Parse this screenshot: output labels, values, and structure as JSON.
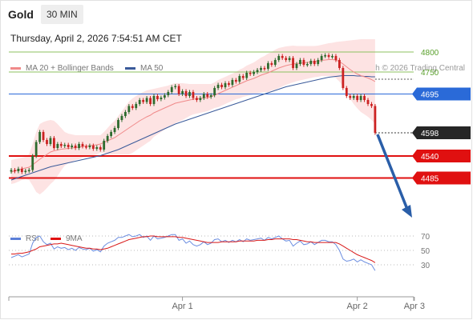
{
  "header": {
    "title": "Gold",
    "timeframe": "30 MIN",
    "datetime": "Thursday, April 2, 2026 7:54:51 AM CET"
  },
  "legend": {
    "ma20": "MA 20 + Bollinger Bands",
    "ma50": "MA 50",
    "credit": "Research © 2026 Trading Central",
    "rsi": "RSI",
    "ma9": "9MA"
  },
  "colors": {
    "up": "#2e6b2e",
    "down": "#cc2222",
    "ma20": "#f08a8a",
    "band": "#fde3e3",
    "ma50": "#3a5a9a",
    "resistance": "#8cc060",
    "pivot": "#2a6ad8",
    "support": "#e01010",
    "current": "#262626",
    "arrow": "#2a5ea8"
  },
  "chart_data": {
    "type": "candlestick",
    "price_axis": {
      "min": 4450,
      "max": 4840
    },
    "x_labels": [
      {
        "label": "Apr 1",
        "index": 48
      },
      {
        "label": "Apr 2",
        "index": 97
      },
      {
        "label": "Apr 3",
        "index": 113
      }
    ],
    "levels": [
      {
        "value": 4800,
        "label": "4800",
        "kind": "resistance"
      },
      {
        "value": 4750,
        "label": "4750",
        "kind": "resistance"
      },
      {
        "value": 4695,
        "label": "4695",
        "kind": "pivot"
      },
      {
        "value": 4598,
        "label": "4598",
        "kind": "current"
      },
      {
        "value": 4540,
        "label": "4540",
        "kind": "support"
      },
      {
        "value": 4485,
        "label": "4485",
        "kind": "support"
      }
    ],
    "closes": [
      4505,
      4502,
      4508,
      4500,
      4503,
      4505,
      4540,
      4575,
      4600,
      4580,
      4570,
      4585,
      4560,
      4570,
      4565,
      4568,
      4562,
      4566,
      4560,
      4570,
      4564,
      4562,
      4566,
      4558,
      4562,
      4556,
      4578,
      4590,
      4600,
      4610,
      4630,
      4640,
      4650,
      4665,
      4660,
      4670,
      4680,
      4675,
      4685,
      4670,
      4690,
      4682,
      4686,
      4692,
      4700,
      4712,
      4715,
      4695,
      4702,
      4690,
      4700,
      4685,
      4680,
      4685,
      4695,
      4688,
      4692,
      4710,
      4718,
      4712,
      4722,
      4718,
      4730,
      4726,
      4740,
      4735,
      4748,
      4745,
      4750,
      4755,
      4760,
      4758,
      4772,
      4768,
      4780,
      4790,
      4785,
      4780,
      4785,
      4760,
      4770,
      4780,
      4768,
      4770,
      4778,
      4770,
      4780,
      4790,
      4792,
      4788,
      4790,
      4780,
      4760,
      4710,
      4690,
      4685,
      4690,
      4680,
      4690,
      4680,
      4670,
      4665,
      4598
    ],
    "ma20": [
      4500,
      4502,
      4505,
      4508,
      4510,
      4512,
      4518,
      4525,
      4532,
      4538,
      4544,
      4550,
      4553,
      4555,
      4557,
      4558,
      4559,
      4560,
      4561,
      4562,
      4564,
      4565,
      4566,
      4567,
      4568,
      4570,
      4574,
      4578,
      4582,
      4586,
      4592,
      4598,
      4604,
      4610,
      4616,
      4622,
      4628,
      4633,
      4638,
      4642,
      4648,
      4652,
      4656,
      4660,
      4664,
      4668,
      4672,
      4674,
      4676,
      4678,
      4680,
      4682,
      4683,
      4684,
      4685,
      4686,
      4688,
      4692,
      4696,
      4700,
      4704,
      4708,
      4712,
      4716,
      4720,
      4724,
      4728,
      4731,
      4734,
      4738,
      4742,
      4745,
      4748,
      4752,
      4756,
      4760,
      4763,
      4766,
      4768,
      4770,
      4771,
      4772,
      4773,
      4774,
      4775,
      4776,
      4777,
      4779,
      4780,
      4781,
      4781,
      4780,
      4776,
      4770,
      4763,
      4756,
      4750,
      4745,
      4741,
      4738,
      4735,
      4731,
      4726
    ],
    "band_upper": [
      4530,
      4532,
      4534,
      4536,
      4538,
      4545,
      4570,
      4600,
      4620,
      4625,
      4628,
      4630,
      4628,
      4620,
      4610,
      4600,
      4596,
      4594,
      4592,
      4592,
      4592,
      4592,
      4592,
      4592,
      4592,
      4592,
      4600,
      4610,
      4620,
      4628,
      4640,
      4652,
      4664,
      4676,
      4684,
      4690,
      4696,
      4700,
      4704,
      4706,
      4708,
      4710,
      4712,
      4714,
      4716,
      4720,
      4722,
      4722,
      4722,
      4721,
      4720,
      4720,
      4720,
      4720,
      4720,
      4720,
      4720,
      4724,
      4730,
      4734,
      4738,
      4742,
      4746,
      4750,
      4756,
      4760,
      4766,
      4770,
      4774,
      4780,
      4786,
      4790,
      4796,
      4800,
      4806,
      4810,
      4812,
      4814,
      4815,
      4816,
      4815,
      4815,
      4815,
      4815,
      4815,
      4815,
      4816,
      4818,
      4820,
      4822,
      4823,
      4825,
      4826,
      4827,
      4828,
      4829,
      4830,
      4831,
      4832,
      4832,
      4832,
      4832,
      4832
    ],
    "band_lower": [
      4470,
      4472,
      4476,
      4480,
      4482,
      4480,
      4466,
      4450,
      4444,
      4451,
      4460,
      4470,
      4478,
      4490,
      4504,
      4516,
      4522,
      4526,
      4530,
      4532,
      4536,
      4538,
      4540,
      4542,
      4544,
      4548,
      4548,
      4546,
      4544,
      4544,
      4544,
      4544,
      4544,
      4544,
      4548,
      4554,
      4560,
      4566,
      4572,
      4578,
      4588,
      4594,
      4600,
      4606,
      4612,
      4616,
      4622,
      4626,
      4630,
      4635,
      4640,
      4644,
      4646,
      4648,
      4650,
      4652,
      4656,
      4660,
      4662,
      4666,
      4670,
      4674,
      4678,
      4682,
      4684,
      4688,
      4690,
      4692,
      4694,
      4696,
      4698,
      4700,
      4700,
      4704,
      4706,
      4710,
      4714,
      4718,
      4721,
      4724,
      4727,
      4729,
      4731,
      4733,
      4735,
      4737,
      4738,
      4740,
      4740,
      4740,
      4739,
      4735,
      4726,
      4713,
      4698,
      4683,
      4670,
      4659,
      4650,
      4644,
      4638,
      4630,
      4620
    ],
    "ma50": [
      4480,
      4483,
      4486,
      4489,
      4492,
      4495,
      4498,
      4501,
      4504,
      4507,
      4510,
      4513,
      4515,
      4517,
      4519,
      4521,
      4523,
      4525,
      4527,
      4529,
      4531,
      4533,
      4535,
      4537,
      4539,
      4541,
      4544,
      4547,
      4550,
      4553,
      4556,
      4560,
      4564,
      4568,
      4572,
      4576,
      4580,
      4584,
      4588,
      4592,
      4596,
      4600,
      4604,
      4608,
      4612,
      4616,
      4620,
      4623,
      4626,
      4629,
      4632,
      4635,
      4638,
      4641,
      4644,
      4647,
      4650,
      4653,
      4656,
      4659,
      4662,
      4665,
      4668,
      4671,
      4674,
      4677,
      4680,
      4683,
      4686,
      4689,
      4692,
      4695,
      4698,
      4701,
      4704,
      4707,
      4710,
      4713,
      4715,
      4717,
      4719,
      4721,
      4723,
      4725,
      4727,
      4729,
      4731,
      4733,
      4735,
      4737,
      4738,
      4739,
      4740,
      4741,
      4741,
      4741,
      4741,
      4740,
      4740,
      4739,
      4739,
      4738,
      4738
    ],
    "rsi": {
      "axis": {
        "min": 20,
        "max": 80,
        "ticks": [
          70,
          50,
          30
        ]
      },
      "values": [
        40,
        42,
        44,
        41,
        43,
        45,
        60,
        68,
        70,
        62,
        58,
        60,
        52,
        55,
        53,
        54,
        51,
        53,
        50,
        54,
        52,
        51,
        53,
        49,
        51,
        48,
        56,
        60,
        62,
        64,
        68,
        68,
        70,
        72,
        69,
        70,
        72,
        68,
        70,
        64,
        70,
        66,
        67,
        68,
        70,
        72,
        72,
        64,
        66,
        60,
        63,
        58,
        56,
        58,
        62,
        58,
        60,
        65,
        66,
        62,
        64,
        61,
        64,
        62,
        65,
        62,
        66,
        64,
        65,
        66,
        67,
        64,
        68,
        66,
        68,
        70,
        66,
        63,
        64,
        56,
        60,
        63,
        58,
        59,
        62,
        58,
        61,
        64,
        64,
        62,
        62,
        58,
        50,
        38,
        35,
        36,
        38,
        34,
        37,
        34,
        32,
        30,
        22
      ],
      "ma9": [
        45,
        45,
        46,
        46,
        47,
        48,
        50,
        52,
        55,
        56,
        57,
        58,
        59,
        59,
        60,
        59,
        58,
        57,
        56,
        55,
        54,
        53,
        53,
        52,
        52,
        51,
        52,
        53,
        55,
        57,
        59,
        61,
        63,
        65,
        66,
        67,
        68,
        69,
        69,
        70,
        70,
        69,
        69,
        69,
        69,
        69,
        69,
        68,
        68,
        67,
        66,
        65,
        64,
        63,
        62,
        61,
        61,
        61,
        61,
        62,
        62,
        62,
        62,
        62,
        63,
        63,
        63,
        63,
        63,
        64,
        64,
        64,
        65,
        65,
        66,
        66,
        66,
        66,
        66,
        65,
        65,
        64,
        63,
        62,
        62,
        61,
        61,
        61,
        61,
        61,
        61,
        61,
        59,
        56,
        53,
        50,
        47,
        44,
        42,
        40,
        38,
        36,
        33
      ]
    }
  }
}
